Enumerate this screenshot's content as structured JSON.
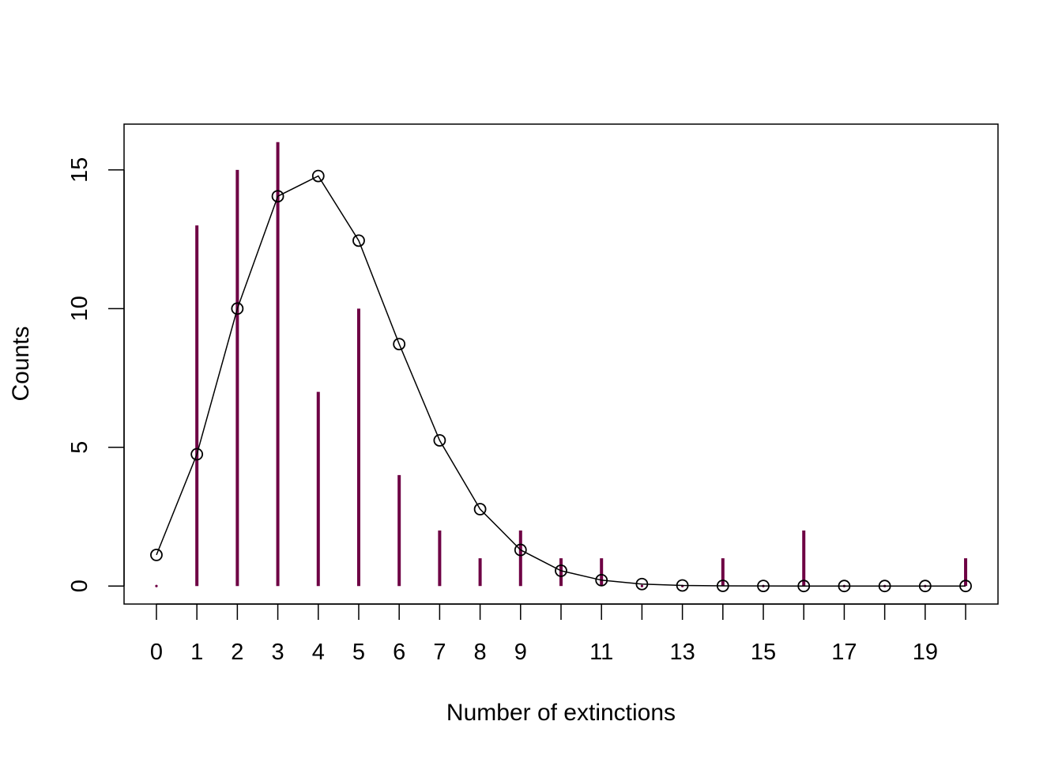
{
  "chart_data": {
    "type": "bar",
    "xlabel": "Number of extinctions",
    "ylabel": "Counts",
    "xlim": [
      -0.8,
      20.8
    ],
    "ylim": [
      -0.65,
      16.65
    ],
    "x_tick_positions": [
      0,
      1,
      2,
      3,
      4,
      5,
      6,
      7,
      8,
      9,
      10,
      11,
      12,
      13,
      14,
      15,
      16,
      17,
      18,
      19,
      20
    ],
    "x_tick_labels": [
      "0",
      "1",
      "2",
      "3",
      "4",
      "5",
      "6",
      "7",
      "8",
      "9",
      "",
      "11",
      "",
      "13",
      "",
      "15",
      "",
      "17",
      "",
      "19",
      ""
    ],
    "y_ticks": [
      0,
      5,
      10,
      15
    ],
    "grid": false,
    "series": [
      {
        "type": "bar",
        "color": "#6e0044",
        "x": [
          0,
          1,
          2,
          3,
          4,
          5,
          6,
          7,
          8,
          9,
          10,
          11,
          12,
          13,
          14,
          15,
          16,
          17,
          18,
          19,
          20
        ],
        "values": [
          0,
          13,
          15,
          16,
          7,
          10,
          4,
          2,
          1,
          2,
          1,
          1,
          0,
          0,
          1,
          0,
          2,
          0,
          0,
          0,
          1
        ]
      },
      {
        "type": "line",
        "marker": "open-circle",
        "color": "#000000",
        "x": [
          0,
          1,
          2,
          3,
          4,
          5,
          6,
          7,
          8,
          9,
          10,
          11,
          12,
          13,
          14,
          15,
          16,
          17,
          18,
          19,
          20
        ],
        "values": [
          1.12,
          4.75,
          10.0,
          14.05,
          14.78,
          12.45,
          8.72,
          5.25,
          2.77,
          1.3,
          0.55,
          0.21,
          0.07,
          0.02,
          0.006,
          0.002,
          0.0,
          0.0,
          0.0,
          0.0,
          0.0
        ]
      }
    ]
  }
}
